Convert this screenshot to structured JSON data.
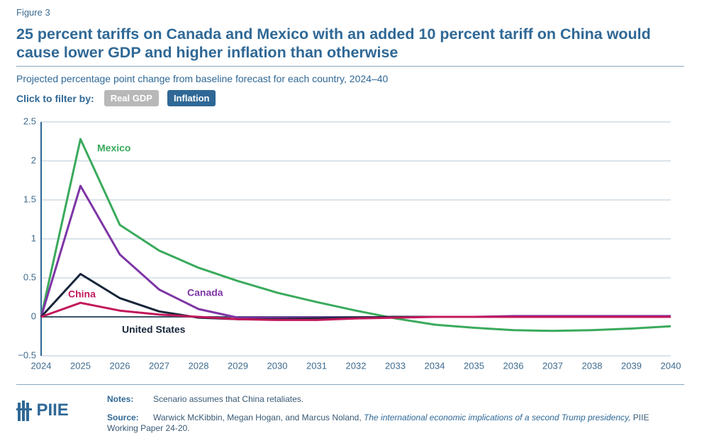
{
  "figure_label": "Figure 3",
  "header": {
    "title": "25 percent tariffs on Canada and Mexico with an added 10 percent tariff on China would cause lower GDP and higher inflation than otherwise",
    "subtitle": "Projected percentage point change from baseline forecast for each country, 2024–40"
  },
  "filter": {
    "label": "Click to filter by:",
    "options": [
      "Real GDP",
      "Inflation"
    ]
  },
  "chart_data": {
    "type": "line",
    "x": [
      2024,
      2025,
      2026,
      2027,
      2028,
      2029,
      2030,
      2031,
      2032,
      2033,
      2034,
      2035,
      2036,
      2037,
      2038,
      2039,
      2040
    ],
    "xlim": [
      2024,
      2040
    ],
    "xticks": [
      2024,
      2025,
      2026,
      2027,
      2028,
      2029,
      2030,
      2031,
      2032,
      2033,
      2034,
      2035,
      2036,
      2037,
      2038,
      2039,
      2040
    ],
    "ylim": [
      -0.5,
      2.5
    ],
    "yticks": [
      {
        "value": -0.5,
        "label": "−0.5"
      },
      0,
      0.5,
      1,
      1.5,
      2,
      2.5
    ],
    "grid": true,
    "series": [
      {
        "name": "Mexico",
        "color": "#3aaa5c",
        "values": [
          0,
          2.28,
          1.18,
          0.85,
          0.63,
          0.46,
          0.31,
          0.19,
          0.08,
          -0.02,
          -0.1,
          -0.14,
          -0.17,
          -0.18,
          -0.17,
          -0.15,
          -0.12
        ]
      },
      {
        "name": "Canada",
        "color": "#7e35a6",
        "values": [
          0,
          1.68,
          0.8,
          0.35,
          0.1,
          -0.01,
          -0.01,
          -0.01,
          -0.01,
          0,
          0,
          0,
          0.01,
          0.01,
          0.01,
          0.01,
          0.01
        ]
      },
      {
        "name": "United States",
        "color": "#17263a",
        "values": [
          0,
          0.55,
          0.24,
          0.07,
          -0.01,
          -0.03,
          -0.03,
          -0.02,
          -0.01,
          0,
          0,
          0,
          0,
          0,
          0,
          0,
          0
        ]
      },
      {
        "name": "China",
        "color": "#c2185b",
        "values": [
          0,
          0.18,
          0.08,
          0.03,
          0,
          -0.03,
          -0.04,
          -0.04,
          -0.02,
          -0.01,
          0,
          0,
          0,
          0,
          0,
          0,
          0
        ]
      }
    ]
  },
  "notes": {
    "label": "Notes:",
    "text": "Scenario assumes that China retaliates."
  },
  "source": {
    "label": "Source:",
    "text": "Warwick McKibbin, Megan Hogan, and Marcus Noland,",
    "italic": "The international economic implications of a second Trump presidency,",
    "text_end": "PIIE Working Paper 24-20."
  },
  "logo": {
    "text": "PIIE"
  }
}
